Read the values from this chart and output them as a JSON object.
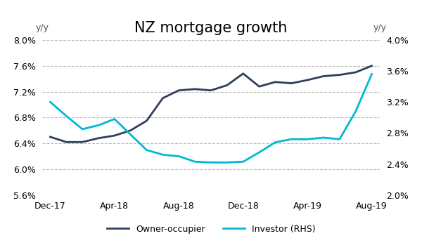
{
  "title": "NZ mortgage growth",
  "ylabel_left": "y/y",
  "ylabel_right": "y/y",
  "x_labels": [
    "Dec-17",
    "Apr-18",
    "Aug-18",
    "Dec-18",
    "Apr-19",
    "Aug-19"
  ],
  "x_positions": [
    0,
    4,
    8,
    12,
    16,
    20
  ],
  "owner_occupier": {
    "label": "Owner-occupier",
    "color": "#2e3f5c",
    "linewidth": 2.0,
    "x": [
      0,
      1,
      2,
      3,
      4,
      5,
      6,
      7,
      8,
      9,
      10,
      11,
      12,
      13,
      14,
      15,
      16,
      17,
      18,
      19,
      20
    ],
    "y": [
      6.5,
      6.42,
      6.42,
      6.48,
      6.52,
      6.6,
      6.75,
      7.1,
      7.22,
      7.24,
      7.22,
      7.3,
      7.48,
      7.28,
      7.35,
      7.33,
      7.38,
      7.44,
      7.46,
      7.5,
      7.6
    ]
  },
  "investor": {
    "label": "Investor (RHS)",
    "color": "#00b8d4",
    "linewidth": 2.0,
    "x": [
      0,
      1,
      2,
      3,
      4,
      5,
      6,
      7,
      8,
      9,
      10,
      11,
      12,
      13,
      14,
      15,
      16,
      17,
      18,
      19,
      20
    ],
    "y": [
      3.2,
      3.02,
      2.85,
      2.9,
      2.98,
      2.78,
      2.58,
      2.52,
      2.5,
      2.43,
      2.42,
      2.42,
      2.43,
      2.55,
      2.68,
      2.72,
      2.72,
      2.74,
      2.72,
      3.08,
      3.56
    ]
  },
  "ylim_left": [
    5.6,
    8.0
  ],
  "ylim_right": [
    2.0,
    4.0
  ],
  "yticks_left": [
    5.6,
    6.0,
    6.4,
    6.8,
    7.2,
    7.6,
    8.0
  ],
  "yticks_right": [
    2.0,
    2.4,
    2.8,
    3.2,
    3.6,
    4.0
  ],
  "background_color": "#ffffff",
  "grid_color": "#bbbbbb",
  "title_fontsize": 15,
  "tick_fontsize": 9,
  "label_fontsize": 9,
  "legend_fontsize": 9
}
